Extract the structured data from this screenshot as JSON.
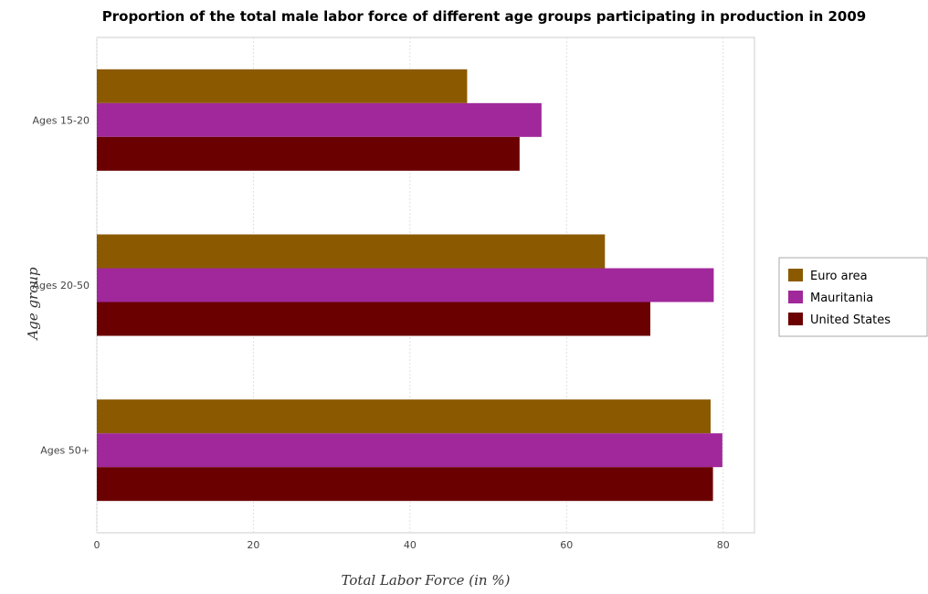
{
  "chart_data": {
    "type": "bar",
    "orientation": "horizontal",
    "title": "Proportion of the total male labor force of different age groups participating in production in 2009",
    "xlabel": "Total Labor Force (in %)",
    "ylabel": "Age group",
    "categories": [
      "Ages 15-20",
      "Ages 20-50",
      "Ages 50+"
    ],
    "series": [
      {
        "name": "Euro area",
        "color": "#8B5A00",
        "values": [
          47.3,
          64.9,
          78.4
        ]
      },
      {
        "name": "Mauritania",
        "color": "#A0289A",
        "values": [
          56.8,
          78.8,
          79.9
        ]
      },
      {
        "name": "United States",
        "color": "#6B0000",
        "values": [
          54.0,
          70.7,
          78.7
        ]
      }
    ],
    "xlim": [
      0,
      84
    ],
    "xticks": [
      0,
      20,
      40,
      60,
      80
    ],
    "grid": true,
    "legend_position": "right"
  }
}
